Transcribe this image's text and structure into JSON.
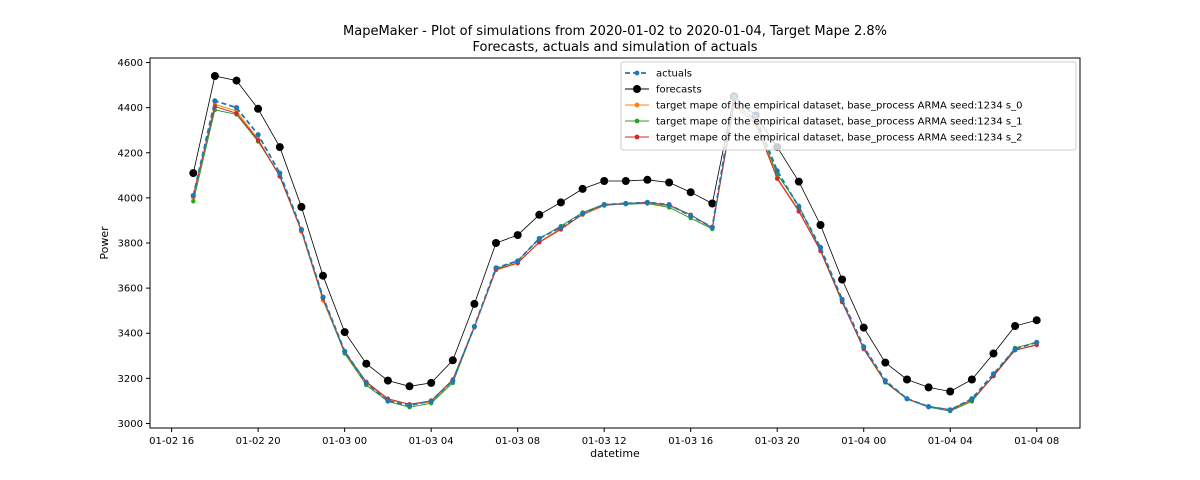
{
  "chart_data": {
    "type": "line",
    "title": "MapeMaker - Plot of simulations from 2020-01-02 to 2020-01-04, Target Mape 2.8%",
    "subtitle": "Forecasts, actuals and simulation of actuals",
    "xlabel": "datetime",
    "ylabel": "Power",
    "xlim": [
      "2020-01-02 15:00",
      "2020-01-04 10:00"
    ],
    "ylim": [
      2980,
      4620
    ],
    "x_ticks": [
      {
        "value": "2020-01-02 16:00",
        "label": "01-02 16"
      },
      {
        "value": "2020-01-02 20:00",
        "label": "01-02 20"
      },
      {
        "value": "2020-01-03 00:00",
        "label": "01-03 00"
      },
      {
        "value": "2020-01-03 04:00",
        "label": "01-03 04"
      },
      {
        "value": "2020-01-03 08:00",
        "label": "01-03 08"
      },
      {
        "value": "2020-01-03 12:00",
        "label": "01-03 12"
      },
      {
        "value": "2020-01-03 16:00",
        "label": "01-03 16"
      },
      {
        "value": "2020-01-03 20:00",
        "label": "01-03 20"
      },
      {
        "value": "2020-01-04 00:00",
        "label": "01-04 00"
      },
      {
        "value": "2020-01-04 04:00",
        "label": "01-04 04"
      },
      {
        "value": "2020-01-04 08:00",
        "label": "01-04 08"
      }
    ],
    "y_ticks": [
      3000,
      3200,
      3400,
      3600,
      3800,
      4000,
      4200,
      4400,
      4600
    ],
    "grid": false,
    "legend_position": "top-right",
    "x": [
      "2020-01-02 17:00",
      "2020-01-02 18:00",
      "2020-01-02 19:00",
      "2020-01-02 20:00",
      "2020-01-02 21:00",
      "2020-01-02 22:00",
      "2020-01-02 23:00",
      "2020-01-03 00:00",
      "2020-01-03 01:00",
      "2020-01-03 02:00",
      "2020-01-03 03:00",
      "2020-01-03 04:00",
      "2020-01-03 05:00",
      "2020-01-03 06:00",
      "2020-01-03 07:00",
      "2020-01-03 08:00",
      "2020-01-03 09:00",
      "2020-01-03 10:00",
      "2020-01-03 11:00",
      "2020-01-03 12:00",
      "2020-01-03 13:00",
      "2020-01-03 14:00",
      "2020-01-03 15:00",
      "2020-01-03 16:00",
      "2020-01-03 17:00",
      "2020-01-03 18:00",
      "2020-01-03 19:00",
      "2020-01-03 20:00",
      "2020-01-03 21:00",
      "2020-01-03 22:00",
      "2020-01-03 23:00",
      "2020-01-04 00:00",
      "2020-01-04 01:00",
      "2020-01-04 02:00",
      "2020-01-04 03:00",
      "2020-01-04 04:00",
      "2020-01-04 05:00",
      "2020-01-04 06:00",
      "2020-01-04 07:00",
      "2020-01-04 08:00"
    ],
    "series": [
      {
        "name": "actuals",
        "color": "#1f77b4",
        "style": "dashed",
        "marker": "circle",
        "values": [
          4010,
          4430,
          4400,
          4280,
          4110,
          3860,
          3560,
          3320,
          3180,
          3100,
          3080,
          3100,
          3190,
          3430,
          3690,
          3720,
          3820,
          3870,
          3930,
          3970,
          3975,
          3980,
          3970,
          3920,
          3870,
          4450,
          4360,
          4120,
          3960,
          3780,
          3550,
          3340,
          3190,
          3110,
          3075,
          3060,
          3110,
          3220,
          3330,
          3360
        ]
      },
      {
        "name": "forecasts",
        "color": "#000000",
        "style": "solid",
        "marker": "circle-large",
        "values": [
          4110,
          4540,
          4520,
          4395,
          4225,
          3960,
          3655,
          3405,
          3265,
          3190,
          3165,
          3180,
          3280,
          3530,
          3800,
          3835,
          3925,
          3980,
          4040,
          4075,
          4075,
          4080,
          4068,
          4025,
          3975,
          4450,
          4365,
          4225,
          4072,
          3880,
          3638,
          3425,
          3270,
          3195,
          3160,
          3142,
          3195,
          3310,
          3432,
          3458
        ]
      },
      {
        "name": "target mape  of the empirical dataset, base_process ARMA  seed:1234 s_0",
        "color": "#ff7f0e",
        "style": "solid",
        "marker": "dot",
        "values": [
          4000,
          4415,
          4385,
          4260,
          4095,
          3850,
          3545,
          3315,
          3180,
          3105,
          3085,
          3095,
          3190,
          3425,
          3680,
          3710,
          3805,
          3865,
          3925,
          3965,
          3975,
          3975,
          3965,
          3925,
          3865,
          4430,
          4340,
          4090,
          3945,
          3765,
          3540,
          3335,
          3185,
          3110,
          3075,
          3060,
          3100,
          3210,
          3325,
          3350
        ]
      },
      {
        "name": "target mape  of the empirical dataset, base_process ARMA  seed:1234 s_1",
        "color": "#2ca02c",
        "style": "solid",
        "marker": "dot",
        "values": [
          3985,
          4390,
          4370,
          4250,
          4100,
          3855,
          3555,
          3310,
          3170,
          3098,
          3072,
          3090,
          3180,
          3428,
          3685,
          3720,
          3820,
          3875,
          3935,
          3972,
          3972,
          3975,
          3958,
          3910,
          3862,
          4420,
          4345,
          4105,
          3965,
          3770,
          3545,
          3330,
          3182,
          3108,
          3072,
          3055,
          3098,
          3212,
          3335,
          3360
        ]
      },
      {
        "name": "target mape  of the empirical dataset, base_process ARMA  seed:1234 s_2",
        "color": "#d62728",
        "style": "solid",
        "marker": "dot",
        "values": [
          4010,
          4405,
          4375,
          4255,
          4095,
          3855,
          3555,
          3318,
          3185,
          3110,
          3085,
          3100,
          3195,
          3430,
          3682,
          3712,
          3803,
          3860,
          3928,
          3970,
          3975,
          3980,
          3968,
          3925,
          3868,
          4410,
          4330,
          4085,
          3940,
          3765,
          3538,
          3330,
          3185,
          3110,
          3075,
          3062,
          3105,
          3210,
          3325,
          3348
        ]
      }
    ]
  }
}
